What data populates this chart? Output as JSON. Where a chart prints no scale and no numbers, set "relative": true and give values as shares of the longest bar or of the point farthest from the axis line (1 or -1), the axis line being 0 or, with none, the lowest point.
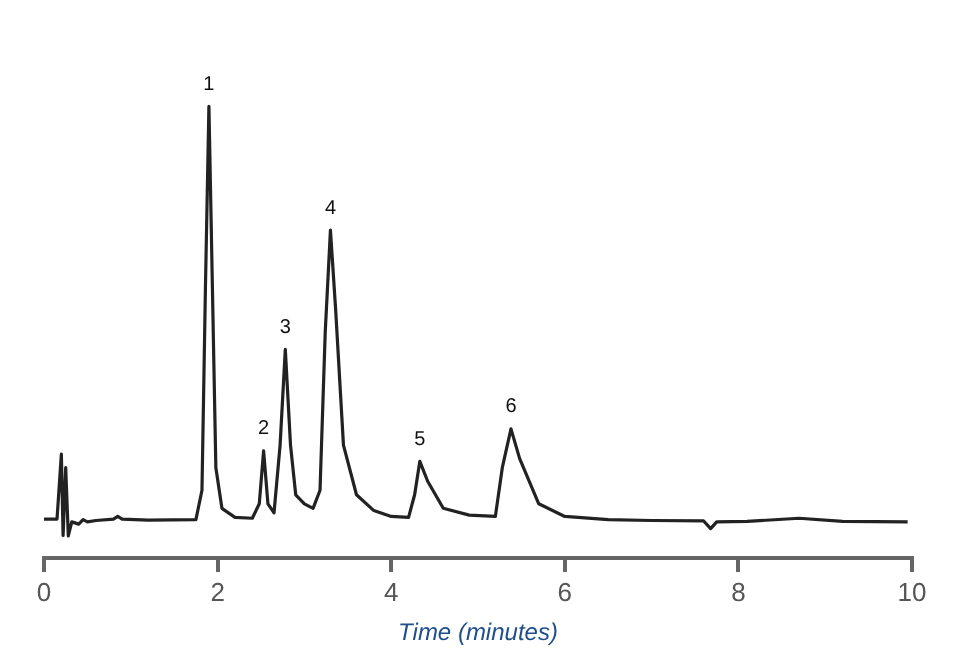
{
  "chart_data": {
    "type": "line",
    "relative": true,
    "xlabel": "Time (minutes)",
    "xlim": [
      0,
      10
    ],
    "xticks": [
      0,
      2,
      4,
      6,
      8,
      10
    ],
    "grid": false,
    "legend": false,
    "marker": "none",
    "line_style": "solid",
    "series": [
      {
        "color": "#222222",
        "x": [
          0,
          0.15,
          0.2,
          0.22,
          0.25,
          0.28,
          0.32,
          0.4,
          0.45,
          0.5,
          0.6,
          0.8,
          0.85,
          0.9,
          1.2,
          1.75,
          1.82,
          1.86,
          1.9,
          1.94,
          1.98,
          2.05,
          2.2,
          2.4,
          2.48,
          2.53,
          2.58,
          2.65,
          2.72,
          2.78,
          2.84,
          2.9,
          3.0,
          3.1,
          3.18,
          3.24,
          3.3,
          3.36,
          3.45,
          3.6,
          3.8,
          4.0,
          4.2,
          4.27,
          4.33,
          4.42,
          4.6,
          4.9,
          5.2,
          5.28,
          5.38,
          5.48,
          5.7,
          6.0,
          6.5,
          7.0,
          7.6,
          7.68,
          7.75,
          8.1,
          8.7,
          9.2,
          9.95
        ],
        "values": [
          0.086,
          0.086,
          0.23,
          0.05,
          0.2,
          0.049,
          0.08,
          0.075,
          0.085,
          0.08,
          0.083,
          0.086,
          0.092,
          0.086,
          0.084,
          0.085,
          0.15,
          0.6,
          1.0,
          0.6,
          0.2,
          0.11,
          0.09,
          0.088,
          0.12,
          0.237,
          0.12,
          0.1,
          0.25,
          0.462,
          0.25,
          0.14,
          0.12,
          0.11,
          0.15,
          0.5,
          0.726,
          0.55,
          0.25,
          0.14,
          0.105,
          0.092,
          0.09,
          0.14,
          0.214,
          0.17,
          0.11,
          0.095,
          0.092,
          0.2,
          0.286,
          0.22,
          0.12,
          0.092,
          0.085,
          0.083,
          0.082,
          0.065,
          0.08,
          0.081,
          0.088,
          0.081,
          0.08
        ]
      }
    ],
    "annotations": [
      {
        "text": "1",
        "x": 1.9,
        "y": 1.0
      },
      {
        "text": "2",
        "x": 2.53,
        "y": 0.237
      },
      {
        "text": "3",
        "x": 2.78,
        "y": 0.462
      },
      {
        "text": "4",
        "x": 3.3,
        "y": 0.726
      },
      {
        "text": "5",
        "x": 4.33,
        "y": 0.214
      },
      {
        "text": "6",
        "x": 5.38,
        "y": 0.286
      }
    ]
  }
}
